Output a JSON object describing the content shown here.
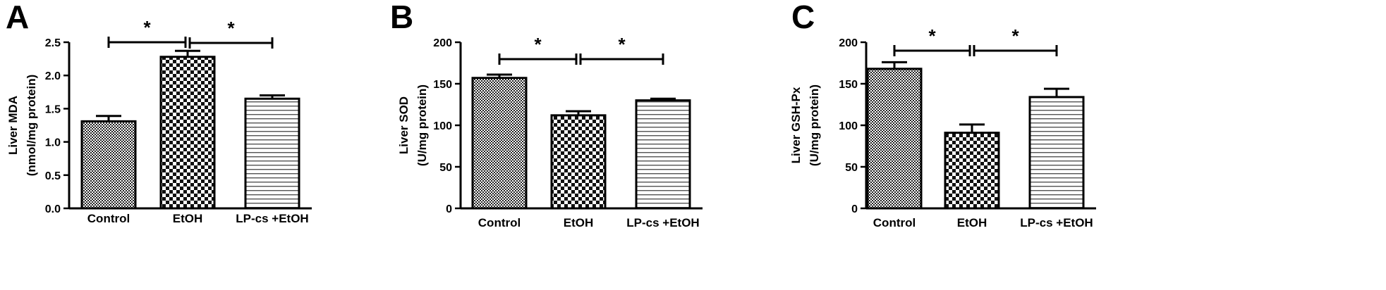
{
  "chart_data": [
    {
      "type": "bar",
      "panel_label": "A",
      "ylabel_line1": "Liver MDA",
      "ylabel_line2": "(nmol/mg protein)",
      "categories": [
        "Control",
        "EtOH",
        "LP-cs +EtOH"
      ],
      "values": [
        1.31,
        2.28,
        1.65
      ],
      "errors": [
        0.08,
        0.09,
        0.05
      ],
      "ylim": [
        0,
        2.5
      ],
      "yticks": [
        0.0,
        0.5,
        1.0,
        1.5,
        2.0,
        2.5
      ],
      "ytick_labels": [
        "0.0",
        "0.5",
        "1.0",
        "1.5",
        "2.0",
        "2.5"
      ],
      "significance": [
        {
          "from": 0,
          "to": 1,
          "label": "*"
        },
        {
          "from": 1,
          "to": 2,
          "label": "*"
        }
      ]
    },
    {
      "type": "bar",
      "panel_label": "B",
      "ylabel_line1": "Liver SOD",
      "ylabel_line2": "(U/mg protein)",
      "categories": [
        "Control",
        "EtOH",
        "LP-cs +EtOH"
      ],
      "values": [
        157,
        112,
        130
      ],
      "errors": [
        4,
        5,
        2
      ],
      "ylim": [
        0,
        200
      ],
      "yticks": [
        0,
        50,
        100,
        150,
        200
      ],
      "ytick_labels": [
        "0",
        "50",
        "100",
        "150",
        "200"
      ],
      "significance": [
        {
          "from": 0,
          "to": 1,
          "label": "*"
        },
        {
          "from": 1,
          "to": 2,
          "label": "*"
        }
      ]
    },
    {
      "type": "bar",
      "panel_label": "C",
      "ylabel_line1": "Liver GSH-Px",
      "ylabel_line2": "(U/mg protein)",
      "categories": [
        "Control",
        "EtOH",
        "LP-cs +EtOH"
      ],
      "values": [
        168,
        91,
        134
      ],
      "errors": [
        8,
        10,
        10
      ],
      "ylim": [
        0,
        200
      ],
      "yticks": [
        0,
        50,
        100,
        150,
        200
      ],
      "ytick_labels": [
        "0",
        "50",
        "100",
        "150",
        "200"
      ],
      "significance": [
        {
          "from": 0,
          "to": 1,
          "label": "*"
        },
        {
          "from": 1,
          "to": 2,
          "label": "*"
        }
      ]
    }
  ]
}
